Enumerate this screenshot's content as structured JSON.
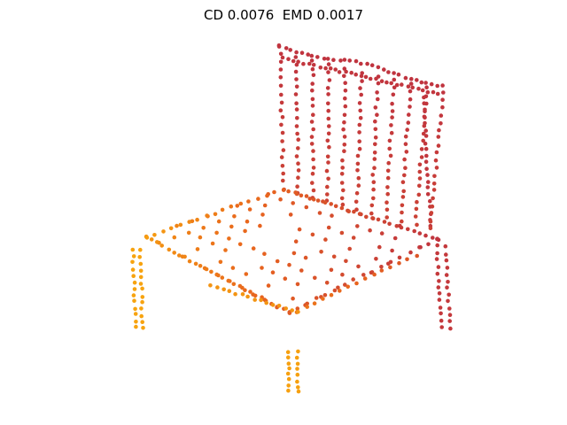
{
  "title": "CD 0.0076  EMD 0.0017",
  "subject": "chair",
  "colors": {
    "far": "#c0343f",
    "mid": "#e8641e",
    "near": "#f7a30f",
    "background": "#ffffff"
  }
}
